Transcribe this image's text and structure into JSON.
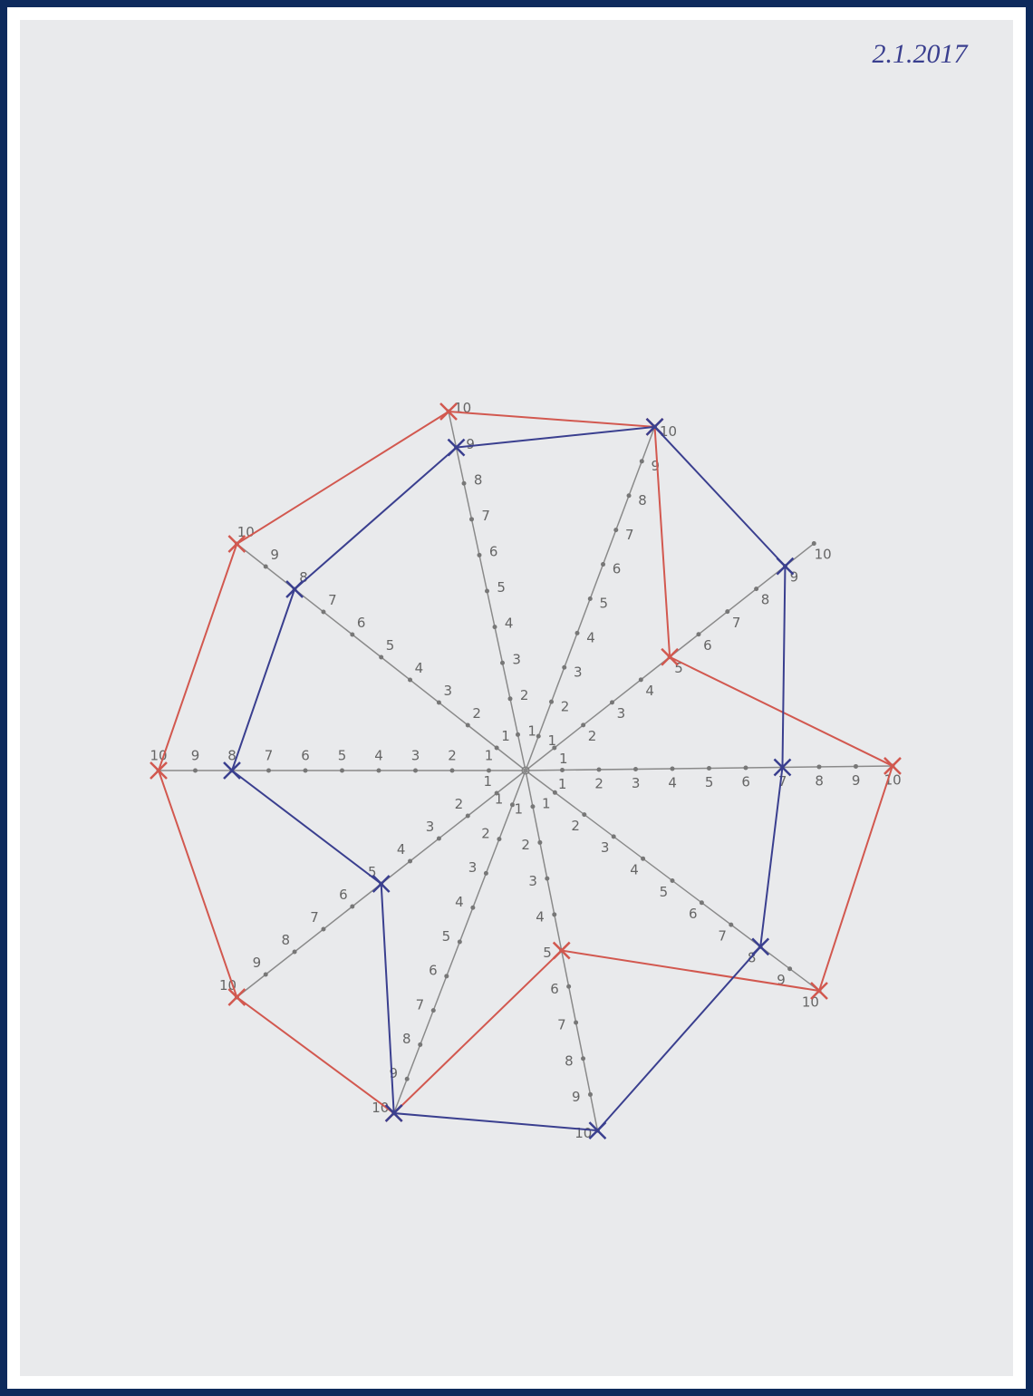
{
  "chart_data": {
    "type": "radar",
    "date": "2.1.2017",
    "categories": [
      null,
      null,
      null,
      null,
      null,
      null,
      null,
      null,
      null,
      null
    ],
    "rlim": [
      0,
      10
    ],
    "rticks": [
      1,
      2,
      3,
      4,
      5,
      6,
      7,
      8,
      9,
      10
    ],
    "series": [
      {
        "color": "#d2584f",
        "values": [
          10,
          10,
          5,
          10,
          10,
          5,
          10,
          10,
          10,
          10
        ]
      },
      {
        "color": "#3a3f8f",
        "values": [
          9,
          10,
          9,
          7,
          8,
          10,
          10,
          5,
          8,
          8
        ]
      }
    ]
  }
}
